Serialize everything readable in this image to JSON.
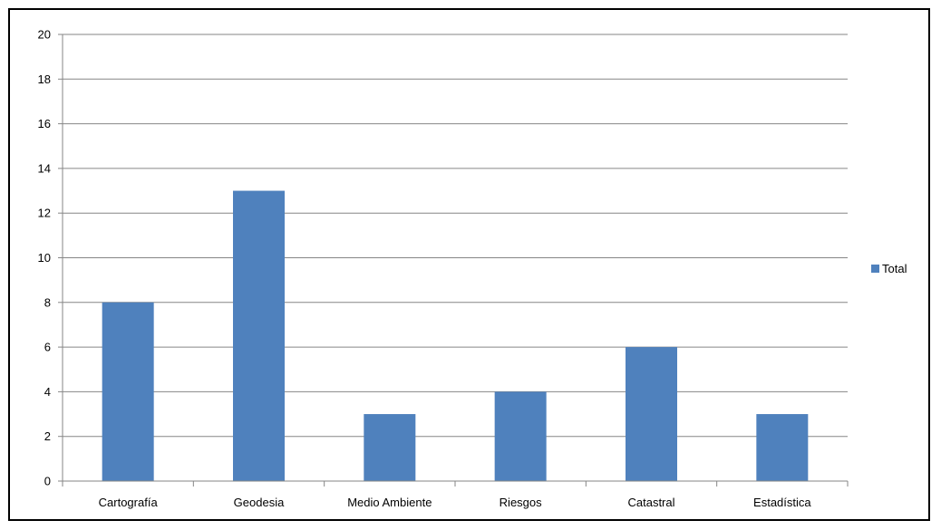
{
  "chart_data": {
    "type": "bar",
    "categories": [
      "Cartografía",
      "Geodesia",
      "Medio Ambiente",
      "Riesgos",
      "Catastral",
      "Estadística"
    ],
    "series": [
      {
        "name": "Total",
        "values": [
          8,
          13,
          3,
          4,
          6,
          3
        ],
        "color": "#4f81bd"
      }
    ],
    "yticks": [
      "0",
      "2",
      "4",
      "6",
      "8",
      "10",
      "12",
      "14",
      "16",
      "18",
      "20"
    ],
    "ylim": [
      0,
      20
    ],
    "grid": true,
    "legend": "right",
    "title": "",
    "xlabel": "",
    "ylabel": ""
  }
}
